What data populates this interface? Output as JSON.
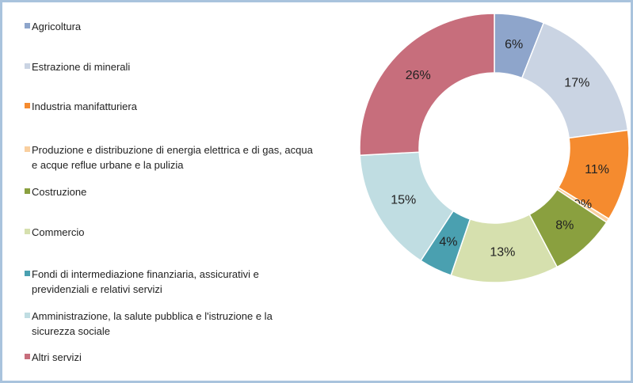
{
  "chart_data": {
    "type": "donut",
    "categories": [
      "Agricoltura",
      "Estrazione di minerali",
      "Industria manifatturiera",
      "Produzione e distribuzione di energia elettrica e di gas, acqua e acque reflue urbane e la pulizia",
      "Costruzione",
      "Commercio",
      "Fondi di intermediazione finanziaria, assicurativi e previdenziali e relativi servizi",
      "Amministrazione, la salute pubblica e l'istruzione e la sicurezza sociale",
      "Altri servizi"
    ],
    "values": [
      6,
      17,
      11,
      0.5,
      8,
      13,
      4,
      15,
      26
    ],
    "value_labels": [
      "6%",
      "17%",
      "11%",
      "0%",
      "8%",
      "13%",
      "4%",
      "15%",
      "26%"
    ],
    "colors": [
      "#8ea5cb",
      "#cad4e3",
      "#f58b2f",
      "#f9cf9f",
      "#8aa03f",
      "#d6e0ae",
      "#4aa0b0",
      "#c0dde2",
      "#c76e7c"
    ],
    "legend": "left"
  }
}
